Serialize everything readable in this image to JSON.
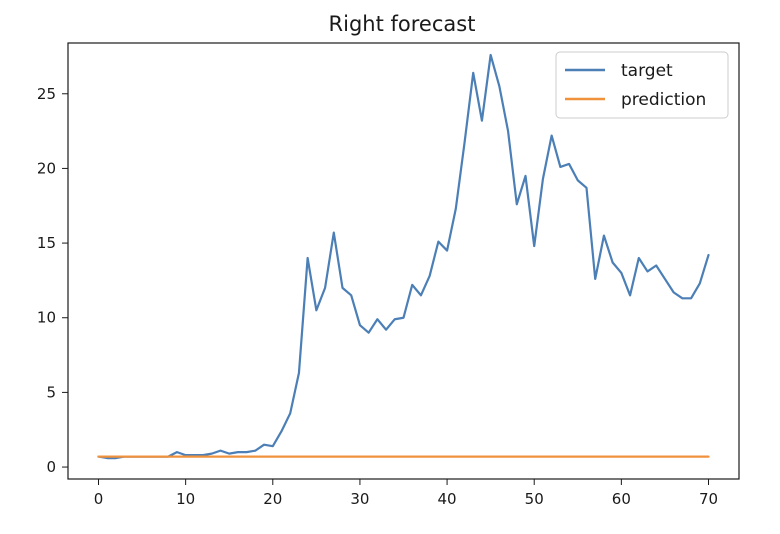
{
  "chart_data": {
    "type": "line",
    "title": "Right forecast",
    "xlabel": "",
    "ylabel": "",
    "xlim": [
      -3.5,
      73.5
    ],
    "ylim": [
      -0.8,
      28.4
    ],
    "x_ticks": [
      0,
      10,
      20,
      30,
      40,
      50,
      60,
      70
    ],
    "y_ticks": [
      0,
      5,
      10,
      15,
      20,
      25
    ],
    "grid": false,
    "legend_position": "top-right",
    "series": [
      {
        "name": "target",
        "color": "#4b7fb6",
        "x": [
          0,
          1,
          2,
          3,
          4,
          5,
          6,
          7,
          8,
          9,
          10,
          11,
          12,
          13,
          14,
          15,
          16,
          17,
          18,
          19,
          20,
          21,
          22,
          23,
          24,
          25,
          26,
          27,
          28,
          29,
          30,
          31,
          32,
          33,
          34,
          35,
          36,
          37,
          38,
          39,
          40,
          41,
          42,
          43,
          44,
          45,
          46,
          47,
          48,
          49,
          50,
          51,
          52,
          53,
          54,
          55,
          56,
          57,
          58,
          59,
          60,
          61,
          62,
          63,
          64,
          65,
          66,
          67,
          68,
          69,
          70
        ],
        "values": [
          0.7,
          0.6,
          0.6,
          0.7,
          0.7,
          0.7,
          0.7,
          0.7,
          0.7,
          1.0,
          0.8,
          0.8,
          0.8,
          0.9,
          1.1,
          0.9,
          1.0,
          1.0,
          1.1,
          1.5,
          1.4,
          2.4,
          3.6,
          6.3,
          14.0,
          10.5,
          12.0,
          15.7,
          12.0,
          11.5,
          9.5,
          9.0,
          9.9,
          9.2,
          9.9,
          10.0,
          12.2,
          11.5,
          12.8,
          15.1,
          14.5,
          17.3,
          21.7,
          26.4,
          23.2,
          27.6,
          25.5,
          22.5,
          17.6,
          19.5,
          14.8,
          19.3,
          22.2,
          20.1,
          20.3,
          19.2,
          18.7,
          12.6,
          15.5,
          13.7,
          13.0,
          11.5,
          14.0,
          13.1,
          13.5,
          12.6,
          11.7,
          11.3,
          11.3,
          12.3,
          14.2
        ]
      },
      {
        "name": "prediction",
        "color": "#f0923c",
        "x": [
          0,
          70
        ],
        "values": [
          0.7,
          0.7
        ]
      }
    ]
  }
}
